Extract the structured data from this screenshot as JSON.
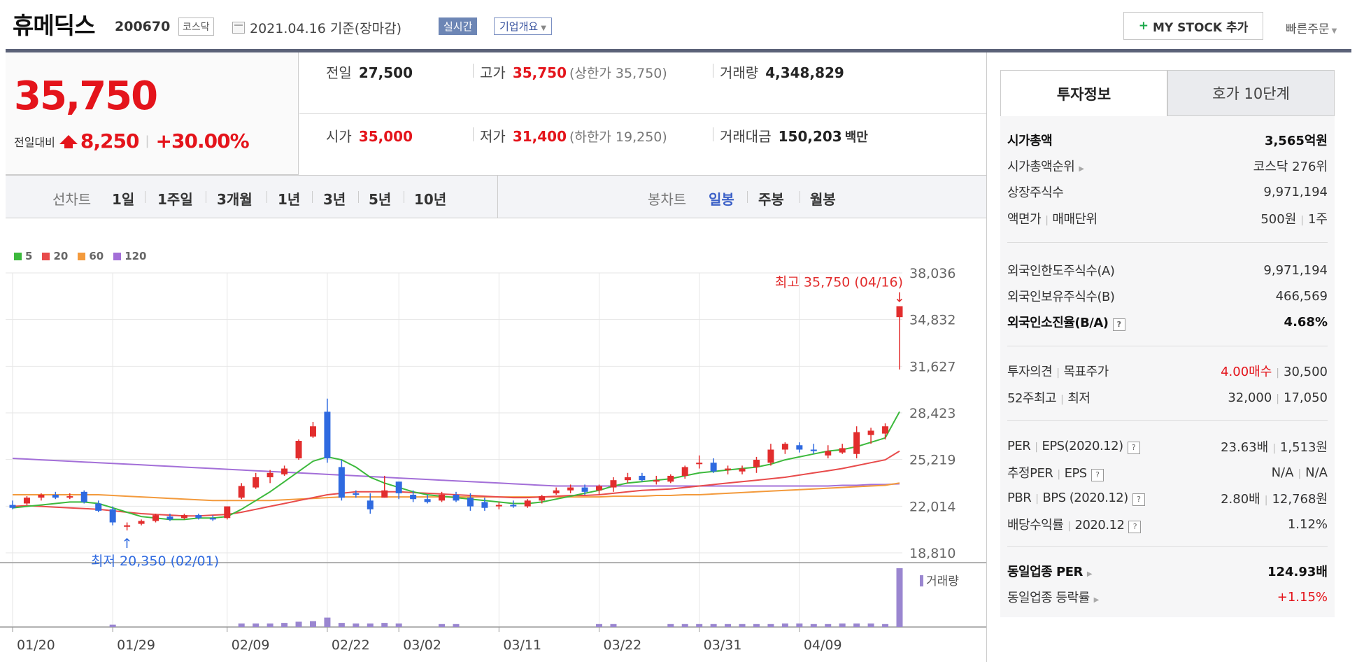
{
  "header": {
    "name": "휴메딕스",
    "code": "200670",
    "market": "코스닥",
    "date": "2021.04.16 기준(장마감)",
    "realtime": "실시간",
    "company_overview": "기업개요",
    "my_stock_button": "MY STOCK 추가",
    "quick_order": "빠른주문"
  },
  "price": {
    "current": "35,750",
    "change_label": "전일대비",
    "change": "8,250",
    "change_pct": "+30.00%"
  },
  "summary": {
    "prev_label": "전일",
    "prev": "27,500",
    "high_label": "고가",
    "high": "35,750",
    "upper_limit": "(상한가 35,750)",
    "volume_label": "거래량",
    "volume": "4,348,829",
    "open_label": "시가",
    "open": "35,000",
    "low_label": "저가",
    "low": "31,400",
    "lower_limit": "(하한가 19,250)",
    "amount_label": "거래대금",
    "amount": "150,203",
    "amount_unit": "백만"
  },
  "periods": {
    "line_chart_label": "선차트",
    "line_items": [
      "1일",
      "1주일",
      "3개월",
      "1년",
      "3년",
      "5년",
      "10년"
    ],
    "candle_chart_label": "봉차트",
    "candle_items": [
      "일봉",
      "주봉",
      "월봉"
    ],
    "selected_candle": "일봉"
  },
  "chart_data": {
    "type": "candlestick",
    "legend": [
      {
        "name": "5",
        "color": "#3cb93c"
      },
      {
        "name": "20",
        "color": "#e84b4b"
      },
      {
        "name": "60",
        "color": "#f39a3c"
      },
      {
        "name": "120",
        "color": "#a36fd8"
      }
    ],
    "y_ticks": [
      "38,036",
      "34,832",
      "31,627",
      "28,423",
      "25,219",
      "22,014",
      "18,810"
    ],
    "ylim": [
      18810,
      38036
    ],
    "x_ticks": [
      "01/20",
      "01/29",
      "02/09",
      "02/22",
      "03/02",
      "03/11",
      "03/22",
      "03/31",
      "04/09"
    ],
    "x_tick_index": [
      0,
      7,
      15,
      22,
      27,
      34,
      41,
      48,
      55
    ],
    "high_annotation": "최고 35,750 (04/16)",
    "low_annotation": "최저 20,350 (02/01)",
    "volume_label": "거래량",
    "candles": [
      [
        22100,
        22400,
        21800,
        21900
      ],
      [
        22200,
        22700,
        22100,
        22600
      ],
      [
        22600,
        22900,
        22400,
        22800
      ],
      [
        22800,
        23000,
        22500,
        22600
      ],
      [
        22600,
        22900,
        22500,
        22700
      ],
      [
        23000,
        23100,
        22200,
        22300
      ],
      [
        22200,
        22400,
        21600,
        21700
      ],
      [
        21800,
        22000,
        20700,
        20900
      ],
      [
        20600,
        20900,
        20350,
        20700
      ],
      [
        20800,
        21100,
        20700,
        21000
      ],
      [
        21000,
        21500,
        20900,
        21400
      ],
      [
        21300,
        21500,
        21000,
        21100
      ],
      [
        21200,
        21500,
        21100,
        21400
      ],
      [
        21400,
        21500,
        21100,
        21200
      ],
      [
        21200,
        21400,
        21000,
        21100
      ],
      [
        21200,
        22000,
        21100,
        22000
      ],
      [
        22600,
        23600,
        22500,
        23400
      ],
      [
        23300,
        24300,
        23200,
        24000
      ],
      [
        24000,
        24500,
        23600,
        24300
      ],
      [
        24200,
        24800,
        24100,
        24600
      ],
      [
        25300,
        26600,
        25200,
        26500
      ],
      [
        26800,
        27800,
        26700,
        27500
      ],
      [
        28500,
        29400,
        25000,
        25300
      ],
      [
        24700,
        25200,
        22400,
        22600
      ],
      [
        22900,
        23100,
        22600,
        22800
      ],
      [
        22400,
        22900,
        21500,
        21800
      ],
      [
        22600,
        24100,
        22600,
        23100
      ],
      [
        23700,
        23700,
        22500,
        22900
      ],
      [
        22800,
        23100,
        22300,
        22500
      ],
      [
        22500,
        22800,
        22200,
        22300
      ],
      [
        22400,
        23000,
        22300,
        22800
      ],
      [
        22800,
        23000,
        22300,
        22400
      ],
      [
        22600,
        22900,
        21700,
        22000
      ],
      [
        22300,
        22600,
        21700,
        21900
      ],
      [
        22000,
        22300,
        21800,
        22100
      ],
      [
        22100,
        22400,
        21900,
        22000
      ],
      [
        22000,
        22500,
        21900,
        22400
      ],
      [
        22400,
        22800,
        22200,
        22700
      ],
      [
        22900,
        23300,
        22800,
        23100
      ],
      [
        23100,
        23500,
        22900,
        23300
      ],
      [
        23300,
        23500,
        22800,
        23000
      ],
      [
        23100,
        23500,
        22800,
        23400
      ],
      [
        23300,
        24000,
        23000,
        23800
      ],
      [
        23800,
        24300,
        23600,
        24000
      ],
      [
        24100,
        24300,
        23700,
        23800
      ],
      [
        23700,
        24100,
        23500,
        23800
      ],
      [
        23700,
        24200,
        23600,
        24100
      ],
      [
        24100,
        24800,
        23900,
        24700
      ],
      [
        24900,
        25500,
        24600,
        25000
      ],
      [
        25000,
        25300,
        24300,
        24400
      ],
      [
        24500,
        24800,
        24200,
        24600
      ],
      [
        24400,
        24800,
        24200,
        24600
      ],
      [
        24700,
        25400,
        24300,
        25200
      ],
      [
        25000,
        26300,
        24800,
        25900
      ],
      [
        25900,
        26400,
        25600,
        26300
      ],
      [
        26200,
        26400,
        25700,
        25900
      ],
      [
        25900,
        26300,
        25600,
        25800
      ],
      [
        25500,
        26200,
        25300,
        25800
      ],
      [
        25700,
        26300,
        25600,
        26000
      ],
      [
        25600,
        27500,
        25300,
        27100
      ],
      [
        26900,
        27400,
        26300,
        27200
      ],
      [
        27000,
        27700,
        26600,
        27500
      ],
      [
        35000,
        35750,
        31400,
        35750
      ]
    ],
    "ma5": [
      21900,
      22000,
      22100,
      22200,
      22300,
      22300,
      22200,
      21900,
      21600,
      21300,
      21200,
      21100,
      21100,
      21200,
      21200,
      21300,
      21800,
      22400,
      23000,
      23700,
      24400,
      25100,
      25400,
      25200,
      24700,
      24000,
      23600,
      23300,
      23000,
      22800,
      22700,
      22600,
      22500,
      22400,
      22300,
      22200,
      22200,
      22300,
      22500,
      22700,
      22900,
      23100,
      23400,
      23600,
      23700,
      23800,
      23900,
      24100,
      24300,
      24400,
      24500,
      24600,
      24700,
      24900,
      25200,
      25400,
      25600,
      25800,
      25900,
      26100,
      26400,
      26700,
      28500
    ],
    "ma20": [
      22000,
      22050,
      22000,
      21950,
      21900,
      21850,
      21800,
      21700,
      21600,
      21500,
      21450,
      21400,
      21350,
      21350,
      21400,
      21450,
      21600,
      21800,
      22000,
      22200,
      22400,
      22600,
      22800,
      22900,
      23000,
      23000,
      23000,
      23000,
      22950,
      22900,
      22850,
      22800,
      22750,
      22700,
      22650,
      22600,
      22600,
      22650,
      22700,
      22750,
      22750,
      22800,
      22900,
      23000,
      23100,
      23150,
      23200,
      23300,
      23400,
      23500,
      23600,
      23700,
      23800,
      23900,
      24000,
      24150,
      24300,
      24450,
      24600,
      24800,
      25000,
      25200,
      25800
    ],
    "ma60": [
      22800,
      22800,
      22800,
      22800,
      22800,
      22800,
      22800,
      22750,
      22700,
      22650,
      22600,
      22550,
      22500,
      22450,
      22400,
      22400,
      22400,
      22400,
      22400,
      22450,
      22500,
      22550,
      22600,
      22650,
      22650,
      22650,
      22650,
      22650,
      22650,
      22650,
      22650,
      22650,
      22650,
      22650,
      22650,
      22650,
      22650,
      22650,
      22650,
      22650,
      22650,
      22650,
      22700,
      22700,
      22700,
      22750,
      22750,
      22800,
      22800,
      22850,
      22900,
      22950,
      23000,
      23050,
      23100,
      23150,
      23200,
      23250,
      23300,
      23350,
      23400,
      23450,
      23600
    ],
    "ma120": [
      25300,
      25250,
      25200,
      25150,
      25100,
      25050,
      25000,
      24950,
      24900,
      24850,
      24800,
      24750,
      24700,
      24650,
      24600,
      24550,
      24500,
      24450,
      24400,
      24350,
      24300,
      24250,
      24200,
      24150,
      24100,
      24050,
      24000,
      23950,
      23900,
      23850,
      23800,
      23750,
      23700,
      23650,
      23600,
      23550,
      23500,
      23450,
      23400,
      23400,
      23400,
      23400,
      23400,
      23400,
      23400,
      23400,
      23400,
      23400,
      23400,
      23400,
      23400,
      23400,
      23400,
      23400,
      23400,
      23400,
      23400,
      23400,
      23450,
      23450,
      23500,
      23500,
      23550
    ],
    "volume": [
      0,
      0,
      0,
      0,
      0,
      0,
      0,
      4,
      0,
      0,
      0,
      0,
      0,
      0,
      0,
      0,
      6,
      6,
      6,
      7,
      9,
      10,
      16,
      7,
      6,
      6,
      7,
      6,
      0,
      0,
      5,
      5,
      0,
      0,
      0,
      0,
      0,
      0,
      0,
      0,
      0,
      5,
      5,
      0,
      0,
      0,
      5,
      5,
      5,
      5,
      5,
      5,
      5,
      5,
      6,
      6,
      5,
      5,
      6,
      6,
      6,
      5,
      100
    ]
  },
  "invest": {
    "tab_info": "투자정보",
    "tab_order": "호가 10단계",
    "rows1": [
      {
        "k": "시가총액",
        "v": "3,565억원"
      },
      {
        "k": "시가총액순위",
        "v": "코스닥 276위"
      },
      {
        "k": "상장주식수",
        "v": "9,971,194"
      },
      {
        "k": "액면가",
        "k2": "매매단위",
        "v": "500원",
        "v2": "1주"
      }
    ],
    "rows2": [
      {
        "k": "외국인한도주식수(A)",
        "v": "9,971,194"
      },
      {
        "k": "외국인보유주식수(B)",
        "v": "466,569"
      },
      {
        "k": "외국인소진율(B/A)",
        "v": "4.68%"
      }
    ],
    "rows3": [
      {
        "k": "투자의견",
        "k2": "목표주가",
        "v": "4.00매수",
        "v2": "30,500"
      },
      {
        "k": "52주최고",
        "k2": "최저",
        "v": "32,000",
        "v2": "17,050"
      }
    ],
    "rows4": [
      {
        "k": "PER",
        "k2": "EPS(2020.12)",
        "v": "23.63배",
        "v2": "1,513원"
      },
      {
        "k": "추정PER",
        "k2": "EPS",
        "v": "N/A",
        "v2": "N/A"
      },
      {
        "k": "PBR",
        "k2": "BPS (2020.12)",
        "v": "2.80배",
        "v2": "12,768원"
      },
      {
        "k": "배당수익률",
        "k2": "2020.12",
        "v": "1.12%"
      }
    ],
    "rows5": [
      {
        "k": "동일업종 PER",
        "v": "124.93배"
      },
      {
        "k": "동일업종 등락률",
        "v": "+1.15%"
      }
    ],
    "help_icon": "?"
  }
}
